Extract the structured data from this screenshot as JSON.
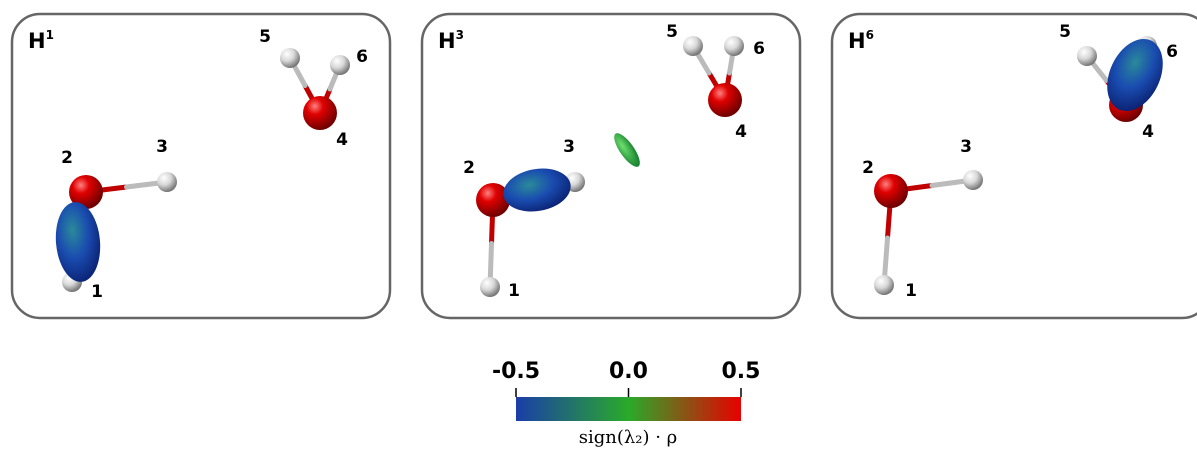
{
  "panels": [
    {
      "title": "H",
      "sup": "1",
      "atoms": [
        "1",
        "2",
        "3",
        "4",
        "5",
        "6"
      ]
    },
    {
      "title": "H",
      "sup": "3",
      "atoms": [
        "1",
        "2",
        "3",
        "4",
        "5",
        "6"
      ]
    },
    {
      "title": "H",
      "sup": "6",
      "atoms": [
        "1",
        "2",
        "3",
        "4",
        "5",
        "6"
      ]
    }
  ],
  "colorbar": {
    "lim": [
      -0.5,
      0.5
    ],
    "ticks": [
      {
        "value": -0.5,
        "label": "-0.5"
      },
      {
        "value": 0.0,
        "label": "0.0"
      },
      {
        "value": 0.5,
        "label": "0.5"
      }
    ],
    "label": "sign(λ₂) · ρ"
  }
}
